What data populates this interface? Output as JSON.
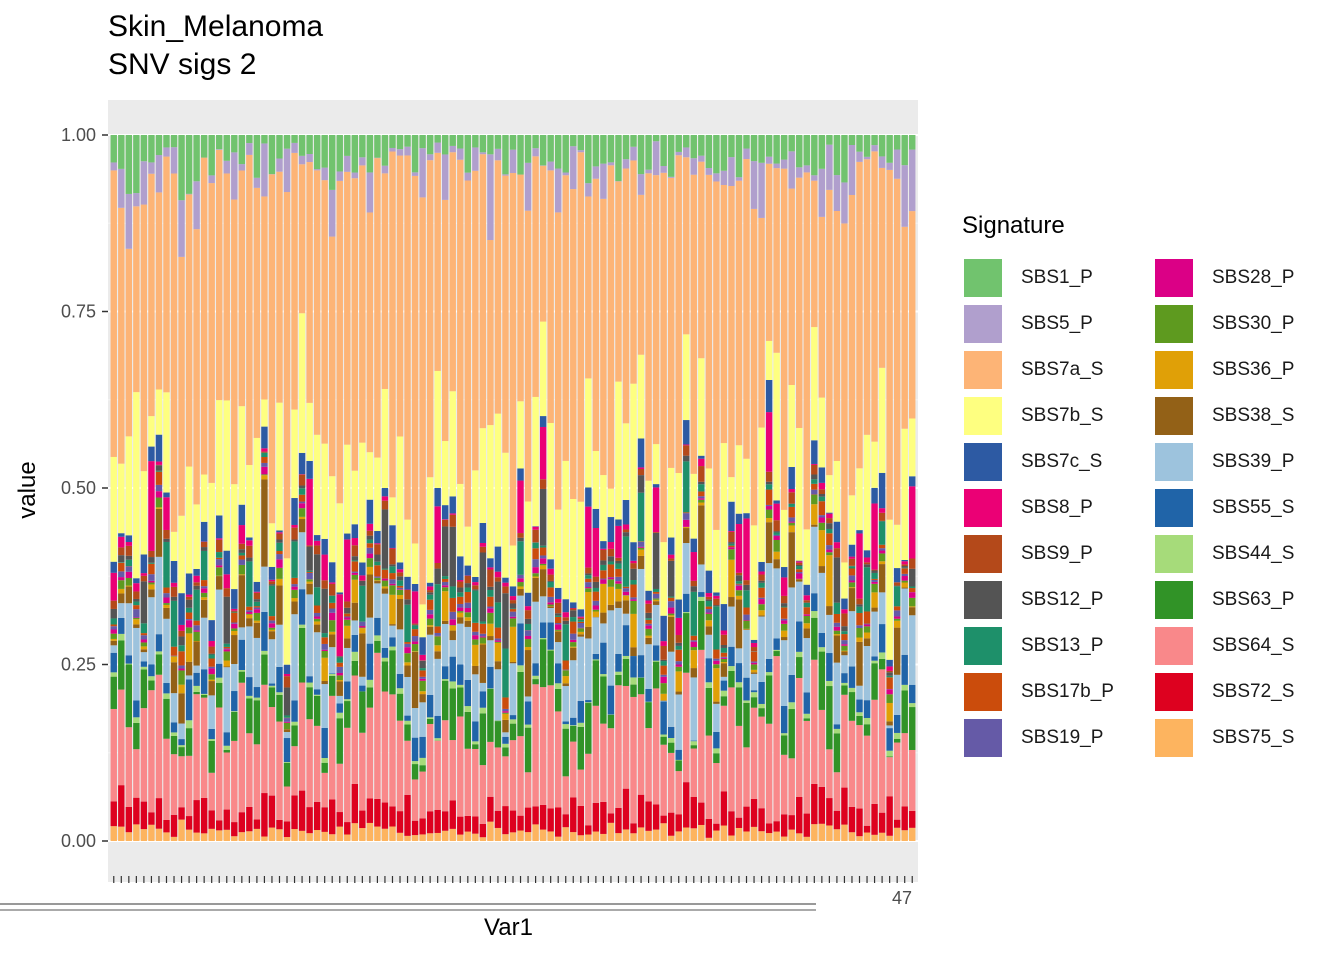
{
  "chart_data": {
    "type": "bar",
    "stacked": true,
    "title": "Skin_Melanoma",
    "subtitle": "SNV sigs 2",
    "xlabel": "Var1",
    "ylabel": "value",
    "ylim": [
      0,
      1
    ],
    "yticks": [
      "0.00",
      "0.25",
      "0.50",
      "0.75",
      "1.00"
    ],
    "x_tick_label_visible": "47",
    "n_samples": 107,
    "legend_title": "Signature",
    "legend_position": "right",
    "series": [
      {
        "name": "SBS1_P",
        "color": "#71C36E"
      },
      {
        "name": "SBS5_P",
        "color": "#B09FCD"
      },
      {
        "name": "SBS7a_S",
        "color": "#FDB476"
      },
      {
        "name": "SBS7b_S",
        "color": "#FEFF80"
      },
      {
        "name": "SBS7c_S",
        "color": "#2D5AA3"
      },
      {
        "name": "SBS8_P",
        "color": "#EB0075"
      },
      {
        "name": "SBS9_P",
        "color": "#B4491A"
      },
      {
        "name": "SBS12_P",
        "color": "#545454"
      },
      {
        "name": "SBS13_P",
        "color": "#1E906A"
      },
      {
        "name": "SBS17b_P",
        "color": "#CB4C0C"
      },
      {
        "name": "SBS19_P",
        "color": "#655AA7"
      },
      {
        "name": "SBS28_P",
        "color": "#DB0086"
      },
      {
        "name": "SBS30_P",
        "color": "#5E9A1F"
      },
      {
        "name": "SBS36_P",
        "color": "#E0A007"
      },
      {
        "name": "SBS38_S",
        "color": "#936117"
      },
      {
        "name": "SBS39_P",
        "color": "#9DC3DD"
      },
      {
        "name": "SBS55_S",
        "color": "#2064A8"
      },
      {
        "name": "SBS44_S",
        "color": "#A6DB7A"
      },
      {
        "name": "SBS63_P",
        "color": "#319327"
      },
      {
        "name": "SBS64_S",
        "color": "#F9888A"
      },
      {
        "name": "SBS72_S",
        "color": "#DD011F"
      },
      {
        "name": "SBS75_S",
        "color": "#FDB45F"
      }
    ],
    "profiles_note": "per-sample approximate fractions",
    "seed": 20240611
  }
}
